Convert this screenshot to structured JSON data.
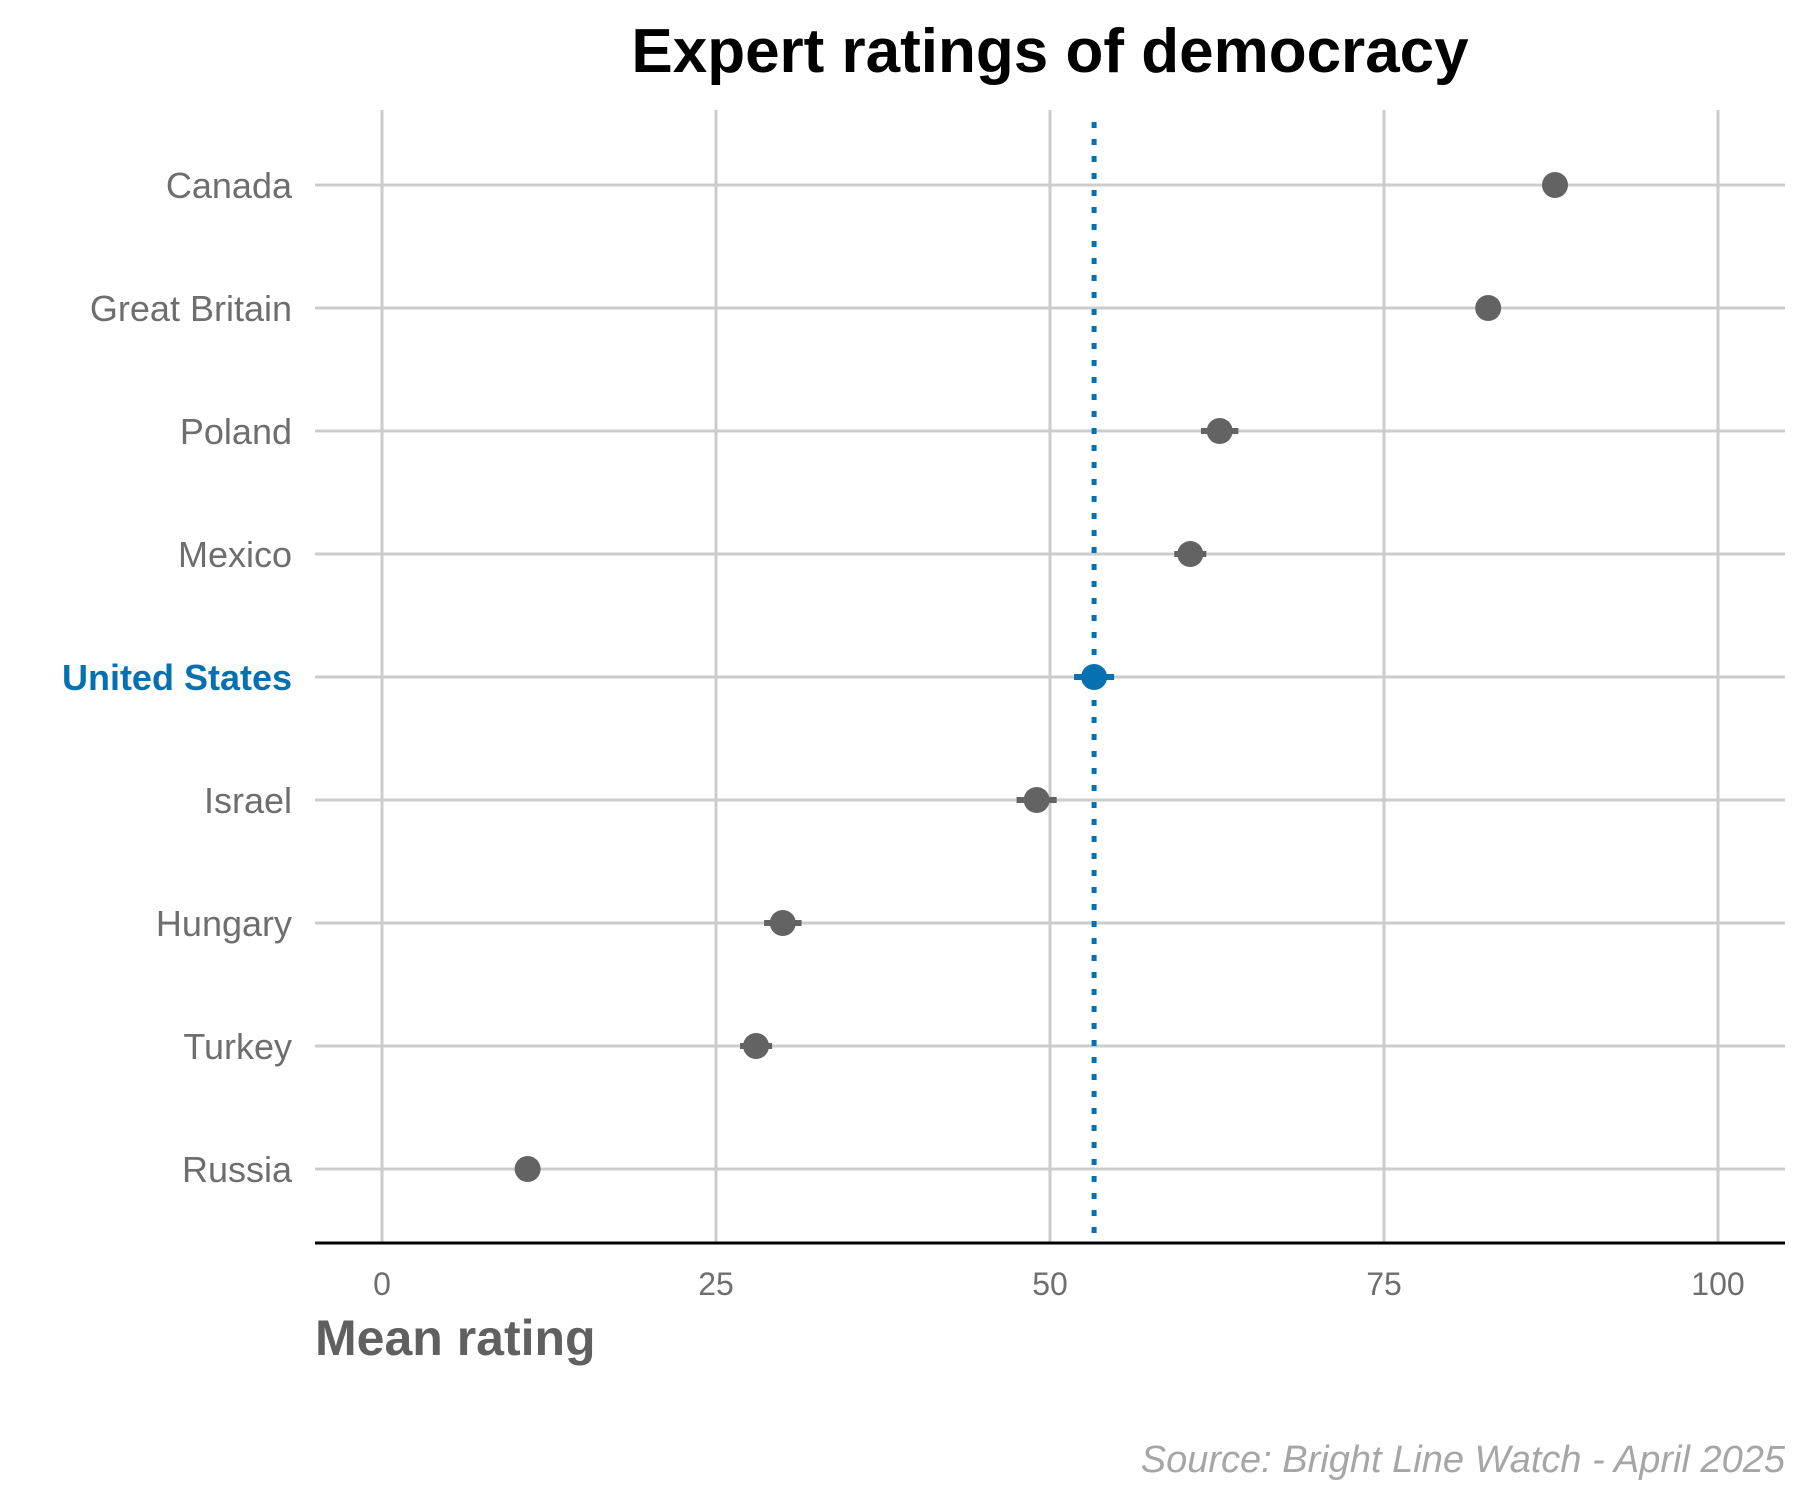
{
  "chart_data": {
    "type": "scatter",
    "title": "Expert ratings of democracy",
    "xlabel": "Mean rating",
    "ylabel": "",
    "xlim": [
      0,
      100
    ],
    "x_ticks": [
      "0",
      "25",
      "50",
      "75",
      "100"
    ],
    "grid": true,
    "legend": "none",
    "reference_line": {
      "x": 53.3,
      "style": "dotted",
      "color": "#0571b0"
    },
    "highlight_color": "#0571b0",
    "point_color": "#636363",
    "points": [
      {
        "label": "Canada",
        "value": 87.8,
        "ci_low": 87.3,
        "ci_high": 88.3,
        "highlight": false
      },
      {
        "label": "Great Britain",
        "value": 82.8,
        "ci_low": 82.3,
        "ci_high": 83.3,
        "highlight": false
      },
      {
        "label": "Poland",
        "value": 62.7,
        "ci_low": 61.3,
        "ci_high": 64.1,
        "highlight": false
      },
      {
        "label": "Mexico",
        "value": 60.5,
        "ci_low": 59.3,
        "ci_high": 61.7,
        "highlight": false
      },
      {
        "label": "United States",
        "value": 53.3,
        "ci_low": 51.8,
        "ci_high": 54.8,
        "highlight": true
      },
      {
        "label": "Israel",
        "value": 49.0,
        "ci_low": 47.5,
        "ci_high": 50.5,
        "highlight": false
      },
      {
        "label": "Hungary",
        "value": 30.0,
        "ci_low": 28.6,
        "ci_high": 31.4,
        "highlight": false
      },
      {
        "label": "Turkey",
        "value": 28.0,
        "ci_low": 26.8,
        "ci_high": 29.2,
        "highlight": false
      },
      {
        "label": "Russia",
        "value": 10.9,
        "ci_low": 10.4,
        "ci_high": 11.4,
        "highlight": false
      }
    ]
  },
  "source": "Source: Bright Line Watch - April 2025"
}
